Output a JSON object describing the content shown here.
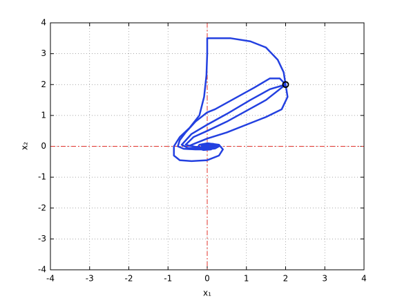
{
  "chart_data": {
    "type": "line",
    "xlabel": "x₁",
    "ylabel": "x₂",
    "xlim": [
      -4,
      4
    ],
    "ylim": [
      -4,
      4
    ],
    "xticks": [
      -4,
      -3,
      -2,
      -1,
      0,
      1,
      2,
      3,
      4
    ],
    "yticks": [
      -4,
      -3,
      -2,
      -1,
      0,
      1,
      2,
      3,
      4
    ],
    "grid": true,
    "vlines": [
      0
    ],
    "hlines": [
      0
    ],
    "refline_color": "#e0302a",
    "series": [
      {
        "color": "#2340e0",
        "x": [
          2,
          1.95,
          1.8,
          1.5,
          1.1,
          0.6,
          0.1,
          0,
          0,
          -0.02,
          -0.08,
          -0.2,
          -0.45,
          -0.7,
          -0.85,
          -0.85,
          -0.7,
          -0.4,
          0,
          0.3,
          0.4,
          0.3,
          0,
          -0.2,
          -0.25,
          -0.1,
          0.1,
          0.15,
          0.05,
          -0.05,
          0
        ],
        "y": [
          2,
          2.4,
          2.8,
          3.2,
          3.4,
          3.5,
          3.5,
          3.5,
          3,
          2.3,
          1.6,
          1.0,
          0.6,
          0.3,
          0,
          -0.3,
          -0.45,
          -0.48,
          -0.45,
          -0.3,
          -0.1,
          0.05,
          0.1,
          0.05,
          -0.05,
          -0.12,
          -0.1,
          0,
          0.05,
          0,
          0
        ]
      },
      {
        "color": "#2340e0",
        "x": [
          2,
          1.85,
          1.6,
          1.2,
          0.7,
          0.2,
          0,
          -0.3,
          -0.55,
          -0.7,
          -0.75,
          -0.6,
          -0.3,
          0,
          0.2,
          0.3,
          0.2,
          0,
          -0.15,
          -0.1,
          0.05,
          0
        ],
        "y": [
          2,
          2.2,
          2.2,
          1.9,
          1.55,
          1.2,
          1.1,
          0.8,
          0.45,
          0.2,
          0,
          -0.08,
          -0.1,
          -0.1,
          -0.07,
          0,
          0.06,
          0.08,
          0.02,
          -0.04,
          -0.02,
          0
        ]
      },
      {
        "color": "#2340e0",
        "x": [
          2,
          1.6,
          1.1,
          0.5,
          0,
          -0.4,
          -0.65,
          -0.5,
          -0.2,
          0.1,
          0.25,
          0.15,
          -0.1,
          -0.15,
          0,
          0
        ],
        "y": [
          2,
          1.85,
          1.5,
          1.05,
          0.7,
          0.4,
          0.05,
          -0.05,
          -0.08,
          -0.06,
          0.02,
          0.08,
          0.05,
          -0.03,
          -0.03,
          0
        ]
      },
      {
        "color": "#2340e0",
        "x": [
          2,
          1.5,
          1,
          0.5,
          0,
          -0.35,
          -0.55,
          -0.3,
          0,
          0.25,
          0.15,
          -0.1,
          0,
          0
        ],
        "y": [
          2,
          1.5,
          1.15,
          0.8,
          0.5,
          0.3,
          0.05,
          -0.03,
          -0.05,
          0.01,
          0.07,
          0.03,
          -0.02,
          0
        ]
      },
      {
        "color": "#2340e0",
        "x": [
          2,
          2.05,
          1.9,
          1.5,
          1,
          0.5,
          0,
          -0.3,
          -0.45,
          -0.2,
          0.1,
          0.2,
          0.05,
          -0.05,
          0
        ],
        "y": [
          2,
          1.6,
          1.2,
          0.95,
          0.7,
          0.45,
          0.25,
          0.1,
          0.02,
          -0.04,
          -0.02,
          0.05,
          0.04,
          0,
          0
        ]
      }
    ],
    "marker": {
      "x": 2,
      "y": 2,
      "color": "#000000"
    }
  }
}
